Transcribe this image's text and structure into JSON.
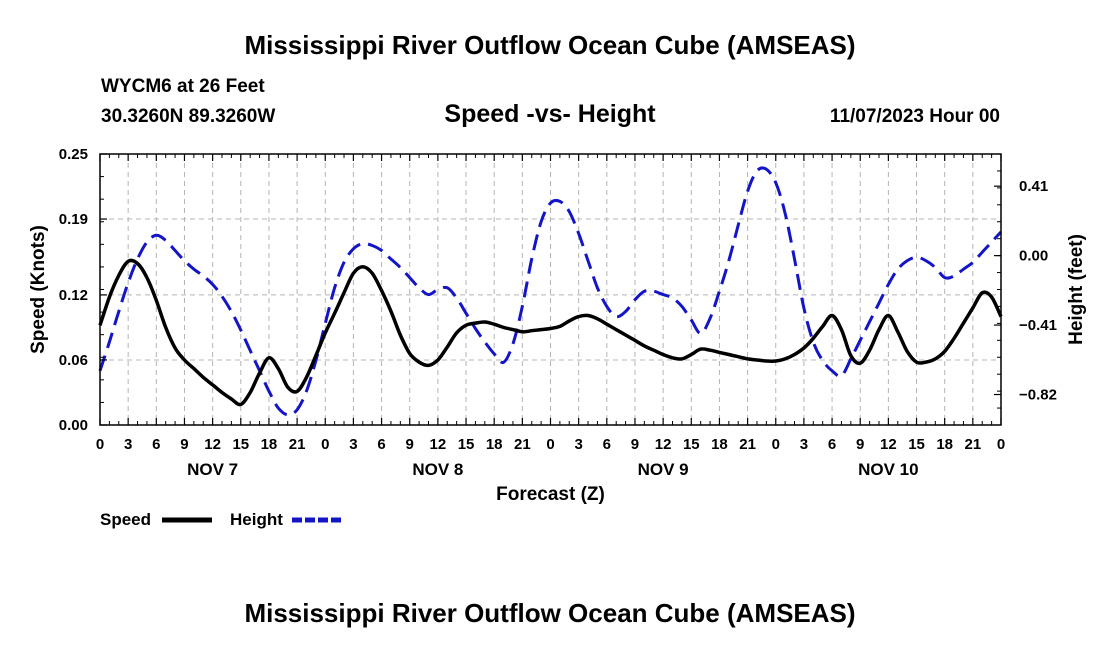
{
  "page": {
    "title_top": "Mississippi River Outflow Ocean Cube (AMSEAS)",
    "title_bottom": "Mississippi River Outflow Ocean Cube (AMSEAS)",
    "station": "WYCM6 at 26 Feet",
    "coords": "30.3260N  89.3260W",
    "subtitle": "Speed -vs- Height",
    "datetime": "11/07/2023 Hour 00"
  },
  "colors": {
    "speed": "#000000",
    "height": "#1515c8",
    "grid": "#b4b4b4"
  },
  "chart_data": {
    "type": "line",
    "title": "Speed -vs- Height",
    "xlabel": "Forecast (Z)",
    "ylabel": "Speed (Knots)",
    "y2label": "Height (feet)",
    "xlim": [
      0,
      96
    ],
    "ylim": [
      0.0,
      0.25
    ],
    "y2lim": [
      -1.0,
      0.6
    ],
    "yticks": [
      0.0,
      0.06,
      0.12,
      0.19,
      0.25
    ],
    "ytick_labels": [
      "0.00",
      "0.06",
      "0.12",
      "0.19",
      "0.25"
    ],
    "y2ticks": [
      -0.82,
      -0.41,
      0.0,
      0.41
    ],
    "y2tick_labels": [
      "−0.82",
      "−0.41",
      "0.00",
      "0.41"
    ],
    "xtick_labels": [
      "0",
      "3",
      "6",
      "9",
      "12",
      "15",
      "18",
      "21",
      "0",
      "3",
      "6",
      "9",
      "12",
      "15",
      "18",
      "21",
      "0",
      "3",
      "6",
      "9",
      "12",
      "15",
      "18",
      "21",
      "0",
      "3",
      "6",
      "9",
      "12",
      "15",
      "18",
      "21",
      "0"
    ],
    "day_labels": [
      {
        "label": "NOV 7",
        "x": 12
      },
      {
        "label": "NOV 8",
        "x": 36
      },
      {
        "label": "NOV 9",
        "x": 60
      },
      {
        "label": "NOV 10",
        "x": 84
      }
    ],
    "legend": {
      "speed_label": "Speed",
      "height_label": "Height"
    },
    "series": [
      {
        "name": "Speed",
        "axis": "left",
        "style": "solid",
        "x": [
          0,
          1,
          2,
          3,
          4,
          5,
          6,
          7,
          8,
          9,
          10,
          11,
          12,
          13,
          14,
          15,
          16,
          17,
          18,
          19,
          20,
          21,
          22,
          23,
          24,
          25,
          26,
          27,
          28,
          29,
          30,
          31,
          32,
          33,
          34,
          35,
          36,
          37,
          38,
          39,
          40,
          41,
          42,
          43,
          44,
          45,
          46,
          47,
          48,
          49,
          50,
          51,
          52,
          53,
          54,
          55,
          56,
          57,
          58,
          59,
          60,
          61,
          62,
          63,
          64,
          65,
          66,
          67,
          68,
          69,
          70,
          71,
          72,
          73,
          74,
          75,
          76,
          77,
          78,
          79,
          80,
          81,
          82,
          83,
          84,
          85,
          86,
          87,
          88,
          89,
          90,
          91,
          92,
          93,
          94,
          95,
          96
        ],
        "values": [
          0.092,
          0.118,
          0.138,
          0.151,
          0.149,
          0.136,
          0.115,
          0.09,
          0.071,
          0.06,
          0.052,
          0.044,
          0.037,
          0.03,
          0.024,
          0.019,
          0.03,
          0.048,
          0.062,
          0.052,
          0.035,
          0.031,
          0.044,
          0.064,
          0.085,
          0.103,
          0.122,
          0.14,
          0.146,
          0.14,
          0.124,
          0.105,
          0.083,
          0.066,
          0.058,
          0.055,
          0.06,
          0.072,
          0.085,
          0.092,
          0.094,
          0.095,
          0.093,
          0.09,
          0.088,
          0.086,
          0.087,
          0.088,
          0.089,
          0.091,
          0.096,
          0.1,
          0.101,
          0.098,
          0.093,
          0.088,
          0.083,
          0.078,
          0.073,
          0.069,
          0.065,
          0.062,
          0.061,
          0.065,
          0.07,
          0.069,
          0.067,
          0.065,
          0.063,
          0.061,
          0.06,
          0.059,
          0.059,
          0.061,
          0.065,
          0.071,
          0.08,
          0.091,
          0.101,
          0.088,
          0.064,
          0.057,
          0.069,
          0.088,
          0.101,
          0.086,
          0.068,
          0.058,
          0.058,
          0.061,
          0.068,
          0.08,
          0.094,
          0.108,
          0.122,
          0.118,
          0.1
        ]
      },
      {
        "name": "Height",
        "axis": "right",
        "style": "dashed",
        "x": [
          0,
          1,
          2,
          3,
          4,
          5,
          6,
          7,
          8,
          9,
          10,
          11,
          12,
          13,
          14,
          15,
          16,
          17,
          18,
          19,
          20,
          21,
          22,
          23,
          24,
          25,
          26,
          27,
          28,
          29,
          30,
          31,
          32,
          33,
          34,
          35,
          36,
          37,
          38,
          39,
          40,
          41,
          42,
          43,
          44,
          45,
          46,
          47,
          48,
          49,
          50,
          51,
          52,
          53,
          54,
          55,
          56,
          57,
          58,
          59,
          60,
          61,
          62,
          63,
          64,
          65,
          66,
          67,
          68,
          69,
          70,
          71,
          72,
          73,
          74,
          75,
          76,
          77,
          78,
          79,
          80,
          81,
          82,
          83,
          84,
          85,
          86,
          87,
          88,
          89,
          90,
          91,
          92,
          93,
          94,
          95,
          96
        ],
        "values": [
          -0.68,
          -0.51,
          -0.33,
          -0.16,
          -0.02,
          0.08,
          0.12,
          0.09,
          0.03,
          -0.03,
          -0.08,
          -0.12,
          -0.17,
          -0.24,
          -0.33,
          -0.44,
          -0.56,
          -0.68,
          -0.8,
          -0.9,
          -0.94,
          -0.91,
          -0.8,
          -0.62,
          -0.4,
          -0.19,
          -0.04,
          0.04,
          0.07,
          0.06,
          0.03,
          -0.02,
          -0.07,
          -0.13,
          -0.19,
          -0.23,
          -0.2,
          -0.19,
          -0.25,
          -0.34,
          -0.43,
          -0.51,
          -0.58,
          -0.63,
          -0.52,
          -0.3,
          -0.02,
          0.2,
          0.31,
          0.32,
          0.26,
          0.13,
          -0.03,
          -0.19,
          -0.3,
          -0.36,
          -0.33,
          -0.26,
          -0.21,
          -0.21,
          -0.23,
          -0.25,
          -0.3,
          -0.38,
          -0.46,
          -0.37,
          -0.21,
          -0.03,
          0.18,
          0.38,
          0.5,
          0.51,
          0.43,
          0.25,
          -0.02,
          -0.31,
          -0.51,
          -0.62,
          -0.68,
          -0.71,
          -0.61,
          -0.5,
          -0.39,
          -0.28,
          -0.17,
          -0.08,
          -0.03,
          -0.01,
          -0.03,
          -0.07,
          -0.13,
          -0.12,
          -0.08,
          -0.04,
          0.02,
          0.08,
          0.14
        ]
      }
    ]
  }
}
